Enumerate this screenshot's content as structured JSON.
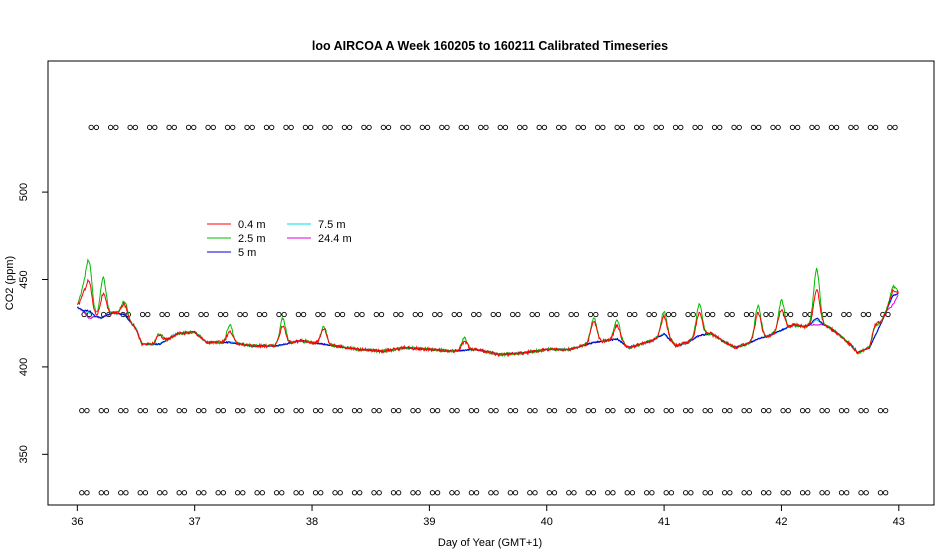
{
  "chart_data": {
    "type": "line",
    "title": "loo AIRCOA A  Week 160205 to 160211  Calibrated Timeseries",
    "xlabel": "Day of Year (GMT+1)",
    "ylabel": "CO2 (ppm)",
    "xlim": [
      35.75,
      43.3
    ],
    "ylim": [
      321,
      575
    ],
    "x_ticks": [
      36,
      37,
      38,
      39,
      40,
      41,
      42,
      43
    ],
    "y_ticks": [
      350,
      400,
      450,
      500
    ],
    "legend_position": "upper-left",
    "legend": [
      "0.4 m",
      "2.5 m",
      "5 m",
      "7.5 m",
      "24.4 m"
    ],
    "colors": {
      "0.4 m": "#ff0000",
      "2.5 m": "#00bb00",
      "5 m": "#0000cc",
      "7.5 m": "#00dddd",
      "24.4 m": "#dd00dd"
    },
    "baseline_points": [
      [
        36.0,
        434
      ],
      [
        36.1,
        430
      ],
      [
        36.2,
        428
      ],
      [
        36.3,
        431
      ],
      [
        36.4,
        430
      ],
      [
        36.5,
        422
      ],
      [
        36.55,
        413
      ],
      [
        36.7,
        413
      ],
      [
        36.85,
        419
      ],
      [
        37.0,
        420
      ],
      [
        37.1,
        414
      ],
      [
        37.3,
        414
      ],
      [
        37.5,
        412
      ],
      [
        37.7,
        412
      ],
      [
        37.9,
        415
      ],
      [
        38.0,
        414
      ],
      [
        38.2,
        412
      ],
      [
        38.4,
        410
      ],
      [
        38.6,
        409
      ],
      [
        38.8,
        411
      ],
      [
        39.0,
        410
      ],
      [
        39.2,
        409
      ],
      [
        39.4,
        410
      ],
      [
        39.6,
        407
      ],
      [
        39.8,
        408
      ],
      [
        40.0,
        410
      ],
      [
        40.2,
        410
      ],
      [
        40.4,
        414
      ],
      [
        40.6,
        416
      ],
      [
        40.7,
        411
      ],
      [
        40.9,
        415
      ],
      [
        41.0,
        419
      ],
      [
        41.1,
        412
      ],
      [
        41.2,
        414
      ],
      [
        41.3,
        418
      ],
      [
        41.4,
        419
      ],
      [
        41.5,
        415
      ],
      [
        41.6,
        411
      ],
      [
        41.7,
        413
      ],
      [
        41.8,
        416
      ],
      [
        41.9,
        418
      ],
      [
        42.0,
        421
      ],
      [
        42.1,
        424
      ],
      [
        42.2,
        423
      ],
      [
        42.3,
        426
      ],
      [
        42.4,
        423
      ],
      [
        42.5,
        418
      ],
      [
        42.6,
        412
      ],
      [
        42.65,
        408
      ],
      [
        42.75,
        411
      ],
      [
        42.85,
        425
      ],
      [
        42.95,
        441
      ],
      [
        43.0,
        442
      ]
    ],
    "series": [
      {
        "name": "0.4 m",
        "peaks": [
          [
            36.05,
            8
          ],
          [
            36.1,
            18
          ],
          [
            36.22,
            13
          ],
          [
            36.4,
            6
          ],
          [
            36.7,
            5
          ],
          [
            37.3,
            6
          ],
          [
            37.75,
            11
          ],
          [
            38.1,
            9
          ],
          [
            39.3,
            5
          ],
          [
            40.4,
            12
          ],
          [
            40.6,
            8
          ],
          [
            41.0,
            10
          ],
          [
            41.3,
            13
          ],
          [
            41.8,
            15
          ],
          [
            42.0,
            12
          ],
          [
            42.3,
            18
          ],
          [
            42.8,
            6
          ],
          [
            42.95,
            3
          ]
        ]
      },
      {
        "name": "2.5 m",
        "peaks": [
          [
            36.05,
            12
          ],
          [
            36.1,
            29
          ],
          [
            36.22,
            22
          ],
          [
            36.4,
            8
          ],
          [
            36.7,
            6
          ],
          [
            37.3,
            10
          ],
          [
            37.75,
            15
          ],
          [
            38.1,
            10
          ],
          [
            39.3,
            7
          ],
          [
            40.4,
            14
          ],
          [
            40.6,
            11
          ],
          [
            41.0,
            13
          ],
          [
            41.3,
            18
          ],
          [
            41.8,
            19
          ],
          [
            42.0,
            17
          ],
          [
            42.3,
            30
          ],
          [
            42.8,
            5
          ],
          [
            42.95,
            5
          ]
        ]
      },
      {
        "name": "5 m",
        "peaks": [
          [
            36.1,
            2
          ],
          [
            42.3,
            2
          ]
        ]
      },
      {
        "name": "7.5 m",
        "peaks": [
          [
            36.1,
            1
          ],
          [
            42.3,
            1
          ]
        ]
      },
      {
        "name": "24.4 m",
        "peaks": [
          [
            36.1,
            -2
          ],
          [
            42.3,
            -2
          ],
          [
            42.95,
            -5
          ]
        ]
      }
    ],
    "reference_marker_rows": [
      {
        "value": 537,
        "x_start": 36.14,
        "x_end": 43.0,
        "step": 0.166
      },
      {
        "value": 430,
        "x_start": 36.08,
        "x_end": 43.0,
        "step": 0.166
      },
      {
        "value": 375,
        "x_start": 36.06,
        "x_end": 43.0,
        "step": 0.166
      },
      {
        "value": 328,
        "x_start": 36.06,
        "x_end": 43.0,
        "step": 0.166
      }
    ]
  }
}
